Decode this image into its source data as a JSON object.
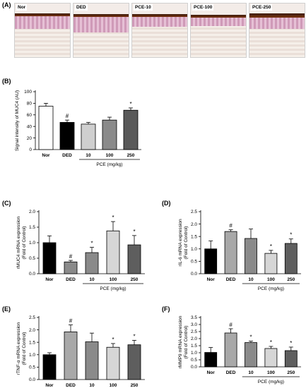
{
  "panels": {
    "a": {
      "label": "(A)",
      "images": [
        {
          "label": "Nor"
        },
        {
          "label": "DED"
        },
        {
          "label": "PCE-10"
        },
        {
          "label": "PCE-100"
        },
        {
          "label": "PCE-250"
        }
      ]
    }
  },
  "chart_data": [
    {
      "panel": "(B)",
      "type": "bar",
      "categories": [
        "Nor",
        "DED",
        "10",
        "100",
        "250"
      ],
      "values": [
        75,
        47,
        44,
        51,
        68
      ],
      "errors": [
        5,
        4,
        3,
        5,
        4
      ],
      "markers": [
        "",
        "#",
        "",
        "",
        "*"
      ],
      "colors": [
        "#ffffff",
        "#000000",
        "#cfcfcf",
        "#8a8a8a",
        "#5a5a5a"
      ],
      "ylabel": "Signal intensity of MUC4 (AU)",
      "group_label": "PCE (mg/kg)",
      "ylim": [
        0,
        100
      ],
      "yticks": [
        "0",
        "20",
        "40",
        "60",
        "80",
        "100"
      ]
    },
    {
      "panel": "(C)",
      "type": "bar",
      "categories": [
        "Nor",
        "DED",
        "10",
        "100",
        "250"
      ],
      "values": [
        1.0,
        0.38,
        0.68,
        1.38,
        0.93
      ],
      "errors": [
        0.22,
        0.05,
        0.17,
        0.3,
        0.3
      ],
      "markers": [
        "",
        "#",
        "*",
        "*",
        "*"
      ],
      "colors": [
        "#000000",
        "#8a8a8a",
        "#8a8a8a",
        "#d6d6d6",
        "#5e5e5e"
      ],
      "ylabel": "rMUC4 mRNA expression",
      "ylabel2": "(Fold of Control)",
      "group_label": "PCE (mg/kg)",
      "ylim": [
        0,
        2.0
      ],
      "yticks": [
        "0.0",
        "0.5",
        "1.0",
        "1.5",
        "2.0"
      ]
    },
    {
      "panel": "(D)",
      "type": "bar",
      "categories": [
        "Nor",
        "DED",
        "10",
        "100",
        "250"
      ],
      "values": [
        1.0,
        1.7,
        1.42,
        0.82,
        1.22
      ],
      "errors": [
        0.32,
        0.07,
        0.38,
        0.12,
        0.18
      ],
      "markers": [
        "",
        "#",
        "",
        "*",
        "*"
      ],
      "colors": [
        "#000000",
        "#a8a8a8",
        "#8a8a8a",
        "#d6d6d6",
        "#5e5e5e"
      ],
      "ylabel": "rIL-6 mRNA expression",
      "ylabel2": "(Fold of Control)",
      "group_label": "PCE (mg/kg)",
      "ylim": [
        0,
        2.5
      ],
      "yticks": [
        "0.0",
        "0.5",
        "1.0",
        "1.5",
        "2.0",
        "2.5"
      ]
    },
    {
      "panel": "(E)",
      "type": "bar",
      "categories": [
        "Nor",
        "DED",
        "10",
        "100",
        "250"
      ],
      "values": [
        1.0,
        1.92,
        1.52,
        1.3,
        1.4
      ],
      "errors": [
        0.08,
        0.28,
        0.35,
        0.15,
        0.18
      ],
      "markers": [
        "",
        "#",
        "",
        "*",
        "*"
      ],
      "colors": [
        "#000000",
        "#a8a8a8",
        "#8a8a8a",
        "#d6d6d6",
        "#5e5e5e"
      ],
      "ylabel": "rTNF-α mRNA expression",
      "ylabel2": "(Fold of Control)",
      "group_label": "PCE (mg/kg)",
      "ylim": [
        0,
        2.5
      ],
      "yticks": [
        "0.0",
        "0.5",
        "1.0",
        "1.5",
        "2.0",
        "2.5"
      ]
    },
    {
      "panel": "(F)",
      "type": "bar",
      "categories": [
        "Nor",
        "DED",
        "10",
        "100",
        "250"
      ],
      "values": [
        1.02,
        2.4,
        1.72,
        1.3,
        1.15
      ],
      "errors": [
        0.35,
        0.3,
        0.1,
        0.15,
        0.25
      ],
      "markers": [
        "",
        "#",
        "*",
        "*",
        "*"
      ],
      "colors": [
        "#000000",
        "#a8a8a8",
        "#8a8a8a",
        "#d6d6d6",
        "#5e5e5e"
      ],
      "ylabel": "rMMP9 mRNA expression",
      "ylabel2": "(Fold of Control)",
      "group_label": "PCE (mg/kg)",
      "ylim": [
        0,
        3.5
      ],
      "yticks": [
        "0.0",
        "0.5",
        "1.0",
        "1.5",
        "2.0",
        "2.5",
        "3.0",
        "3.5"
      ]
    }
  ]
}
